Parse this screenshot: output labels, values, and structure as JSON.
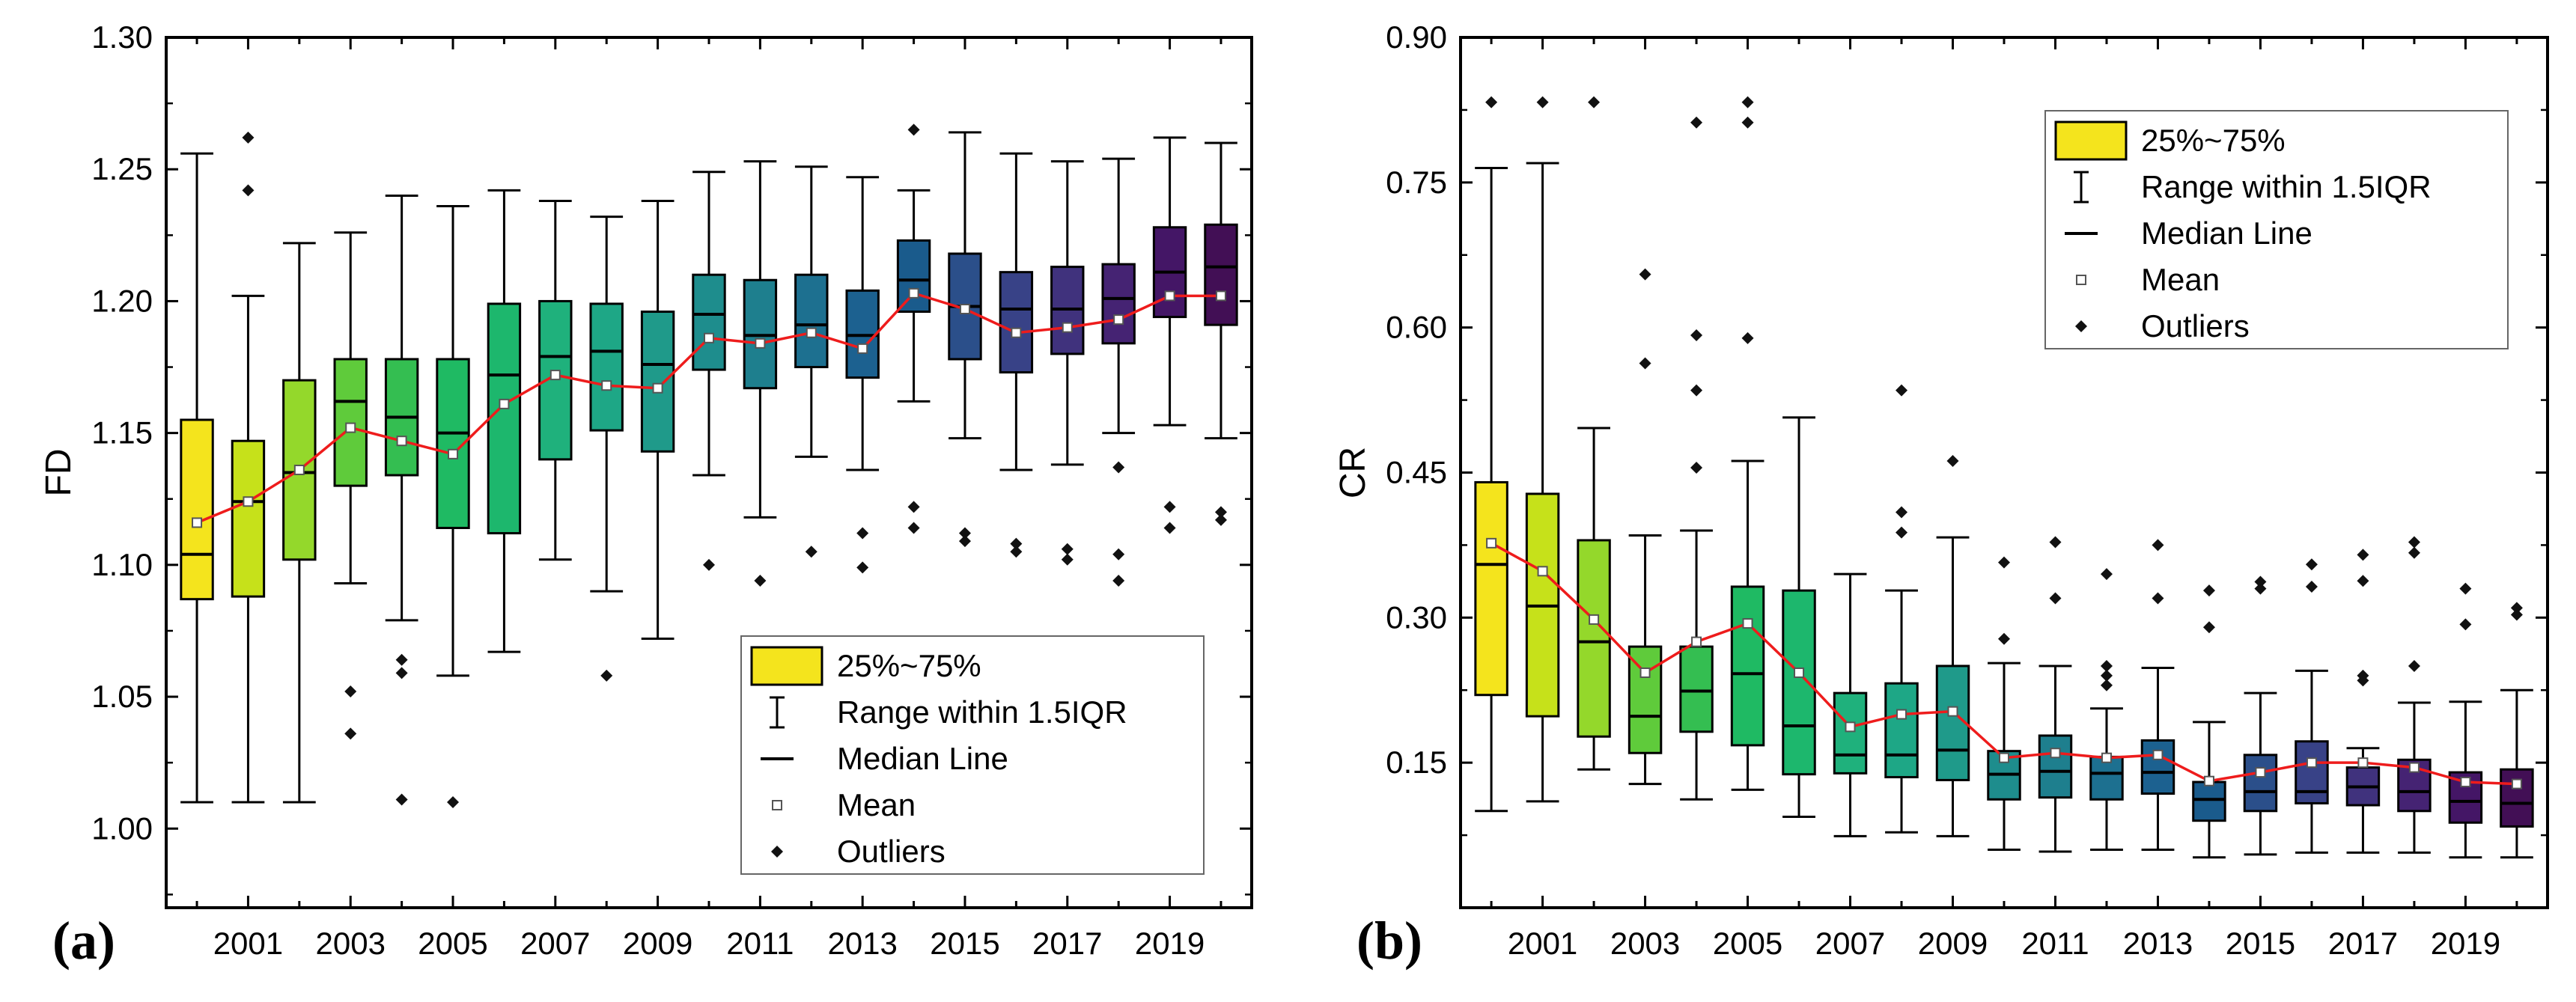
{
  "chart_data": [
    {
      "type": "box",
      "panel_label": "(a)",
      "ylabel": "FD",
      "xlabel": "",
      "ylim": [
        0.97,
        1.3
      ],
      "yticks": [
        "1.00",
        "1.05",
        "1.10",
        "1.15",
        "1.20",
        "1.25",
        "1.30"
      ],
      "xtick_labels": [
        "2001",
        "2003",
        "2005",
        "2007",
        "2009",
        "2011",
        "2013",
        "2015",
        "2017",
        "2019"
      ],
      "years": [
        2000,
        2001,
        2002,
        2003,
        2004,
        2005,
        2006,
        2007,
        2008,
        2009,
        2010,
        2011,
        2012,
        2013,
        2014,
        2015,
        2016,
        2017,
        2018,
        2019,
        2020
      ],
      "box_colors": [
        "#f4e41d",
        "#c6e11a",
        "#94d82b",
        "#5fcb3b",
        "#34be51",
        "#1fba63",
        "#1db76d",
        "#1fb17c",
        "#1ea786",
        "#1f9a8a",
        "#1e8d8d",
        "#1e7f8e",
        "#1d7090",
        "#1c6190",
        "#1a5b8c",
        "#2b4f8a",
        "#384287",
        "#40327d",
        "#452373",
        "#441666",
        "#420f55"
      ],
      "stats": [
        {
          "whislo": 1.01,
          "q1": 1.087,
          "med": 1.104,
          "q3": 1.155,
          "whishi": 1.256,
          "mean": 1.116,
          "fliers": []
        },
        {
          "whislo": 1.01,
          "q1": 1.088,
          "med": 1.124,
          "q3": 1.147,
          "whishi": 1.202,
          "mean": 1.124,
          "fliers": [
            1.242,
            1.262
          ]
        },
        {
          "whislo": 1.01,
          "q1": 1.102,
          "med": 1.135,
          "q3": 1.17,
          "whishi": 1.222,
          "mean": 1.136,
          "fliers": []
        },
        {
          "whislo": 1.093,
          "q1": 1.13,
          "med": 1.162,
          "q3": 1.178,
          "whishi": 1.226,
          "mean": 1.152,
          "fliers": [
            1.052,
            1.036
          ]
        },
        {
          "whislo": 1.079,
          "q1": 1.134,
          "med": 1.156,
          "q3": 1.178,
          "whishi": 1.24,
          "mean": 1.147,
          "fliers": [
            1.064,
            1.059,
            1.011
          ]
        },
        {
          "whislo": 1.058,
          "q1": 1.114,
          "med": 1.15,
          "q3": 1.178,
          "whishi": 1.236,
          "mean": 1.142,
          "fliers": [
            1.01
          ]
        },
        {
          "whislo": 1.067,
          "q1": 1.112,
          "med": 1.172,
          "q3": 1.199,
          "whishi": 1.242,
          "mean": 1.161,
          "fliers": []
        },
        {
          "whislo": 1.102,
          "q1": 1.14,
          "med": 1.179,
          "q3": 1.2,
          "whishi": 1.238,
          "mean": 1.172,
          "fliers": []
        },
        {
          "whislo": 1.09,
          "q1": 1.151,
          "med": 1.181,
          "q3": 1.199,
          "whishi": 1.232,
          "mean": 1.168,
          "fliers": [
            1.058
          ]
        },
        {
          "whislo": 1.072,
          "q1": 1.143,
          "med": 1.176,
          "q3": 1.196,
          "whishi": 1.238,
          "mean": 1.167,
          "fliers": []
        },
        {
          "whislo": 1.134,
          "q1": 1.174,
          "med": 1.195,
          "q3": 1.21,
          "whishi": 1.249,
          "mean": 1.186,
          "fliers": [
            1.1
          ]
        },
        {
          "whislo": 1.118,
          "q1": 1.167,
          "med": 1.187,
          "q3": 1.208,
          "whishi": 1.253,
          "mean": 1.184,
          "fliers": [
            1.094
          ]
        },
        {
          "whislo": 1.141,
          "q1": 1.175,
          "med": 1.191,
          "q3": 1.21,
          "whishi": 1.251,
          "mean": 1.188,
          "fliers": [
            1.105
          ]
        },
        {
          "whislo": 1.136,
          "q1": 1.171,
          "med": 1.187,
          "q3": 1.204,
          "whishi": 1.247,
          "mean": 1.182,
          "fliers": [
            1.112,
            1.099
          ]
        },
        {
          "whislo": 1.162,
          "q1": 1.196,
          "med": 1.208,
          "q3": 1.223,
          "whishi": 1.242,
          "mean": 1.203,
          "fliers": [
            1.265,
            1.122,
            1.114
          ]
        },
        {
          "whislo": 1.148,
          "q1": 1.178,
          "med": 1.198,
          "q3": 1.218,
          "whishi": 1.264,
          "mean": 1.197,
          "fliers": [
            1.112,
            1.109
          ]
        },
        {
          "whislo": 1.136,
          "q1": 1.173,
          "med": 1.197,
          "q3": 1.211,
          "whishi": 1.256,
          "mean": 1.188,
          "fliers": [
            1.108,
            1.105
          ]
        },
        {
          "whislo": 1.138,
          "q1": 1.18,
          "med": 1.197,
          "q3": 1.213,
          "whishi": 1.253,
          "mean": 1.19,
          "fliers": [
            1.106,
            1.102
          ]
        },
        {
          "whislo": 1.15,
          "q1": 1.184,
          "med": 1.201,
          "q3": 1.214,
          "whishi": 1.254,
          "mean": 1.193,
          "fliers": [
            1.137,
            1.104,
            1.094
          ]
        },
        {
          "whislo": 1.153,
          "q1": 1.194,
          "med": 1.211,
          "q3": 1.228,
          "whishi": 1.262,
          "mean": 1.202,
          "fliers": [
            1.122,
            1.114
          ]
        },
        {
          "whislo": 1.148,
          "q1": 1.191,
          "med": 1.213,
          "q3": 1.229,
          "whishi": 1.26,
          "mean": 1.202,
          "fliers": [
            1.12,
            1.117
          ]
        }
      ],
      "legend": {
        "placement": "bottom-right",
        "entries": [
          "25%~75%",
          "Range within 1.5IQR",
          "Median Line",
          "Mean",
          "Outliers"
        ]
      }
    },
    {
      "type": "box",
      "panel_label": "(b)",
      "ylabel": "CR",
      "xlabel": "",
      "ylim": [
        0.0,
        0.9
      ],
      "yticks": [
        "0.15",
        "0.30",
        "0.45",
        "0.60",
        "0.75",
        "0.90"
      ],
      "xtick_labels": [
        "2001",
        "2003",
        "2005",
        "2007",
        "2009",
        "2011",
        "2013",
        "2015",
        "2017",
        "2019"
      ],
      "years": [
        2000,
        2001,
        2002,
        2003,
        2004,
        2005,
        2006,
        2007,
        2008,
        2009,
        2010,
        2011,
        2012,
        2013,
        2014,
        2015,
        2016,
        2017,
        2018,
        2019,
        2020
      ],
      "box_colors": [
        "#f4e41d",
        "#c6e11a",
        "#94d82b",
        "#5fcb3b",
        "#34be51",
        "#1fba63",
        "#1db76d",
        "#1fb17c",
        "#1ea786",
        "#1f9a8a",
        "#1e8d8d",
        "#1e7f8e",
        "#1d7090",
        "#1c6190",
        "#1a5b8c",
        "#2b4f8a",
        "#384287",
        "#40327d",
        "#452373",
        "#441666",
        "#420f55"
      ],
      "stats": [
        {
          "whislo": 0.1,
          "q1": 0.22,
          "med": 0.355,
          "q3": 0.44,
          "whishi": 0.765,
          "mean": 0.377,
          "fliers": [
            0.833
          ]
        },
        {
          "whislo": 0.11,
          "q1": 0.198,
          "med": 0.312,
          "q3": 0.428,
          "whishi": 0.77,
          "mean": 0.348,
          "fliers": [
            0.833
          ]
        },
        {
          "whislo": 0.143,
          "q1": 0.177,
          "med": 0.275,
          "q3": 0.38,
          "whishi": 0.496,
          "mean": 0.298,
          "fliers": [
            0.833
          ]
        },
        {
          "whislo": 0.128,
          "q1": 0.16,
          "med": 0.198,
          "q3": 0.27,
          "whishi": 0.385,
          "mean": 0.243,
          "fliers": [
            0.655,
            0.563
          ]
        },
        {
          "whislo": 0.112,
          "q1": 0.182,
          "med": 0.224,
          "q3": 0.27,
          "whishi": 0.39,
          "mean": 0.275,
          "fliers": [
            0.812,
            0.592,
            0.535,
            0.455
          ]
        },
        {
          "whislo": 0.122,
          "q1": 0.168,
          "med": 0.242,
          "q3": 0.332,
          "whishi": 0.462,
          "mean": 0.294,
          "fliers": [
            0.833,
            0.812,
            0.589
          ]
        },
        {
          "whislo": 0.094,
          "q1": 0.138,
          "med": 0.188,
          "q3": 0.328,
          "whishi": 0.507,
          "mean": 0.243,
          "fliers": []
        },
        {
          "whislo": 0.074,
          "q1": 0.139,
          "med": 0.158,
          "q3": 0.222,
          "whishi": 0.345,
          "mean": 0.187,
          "fliers": []
        },
        {
          "whislo": 0.078,
          "q1": 0.135,
          "med": 0.158,
          "q3": 0.232,
          "whishi": 0.328,
          "mean": 0.2,
          "fliers": [
            0.535,
            0.409,
            0.388
          ]
        },
        {
          "whislo": 0.074,
          "q1": 0.132,
          "med": 0.163,
          "q3": 0.25,
          "whishi": 0.383,
          "mean": 0.203,
          "fliers": [
            0.462
          ]
        },
        {
          "whislo": 0.06,
          "q1": 0.112,
          "med": 0.138,
          "q3": 0.162,
          "whishi": 0.253,
          "mean": 0.155,
          "fliers": [
            0.357,
            0.278
          ]
        },
        {
          "whislo": 0.058,
          "q1": 0.114,
          "med": 0.141,
          "q3": 0.178,
          "whishi": 0.25,
          "mean": 0.16,
          "fliers": [
            0.378,
            0.32
          ]
        },
        {
          "whislo": 0.06,
          "q1": 0.112,
          "med": 0.139,
          "q3": 0.156,
          "whishi": 0.206,
          "mean": 0.155,
          "fliers": [
            0.345,
            0.25,
            0.24,
            0.23
          ]
        },
        {
          "whislo": 0.06,
          "q1": 0.118,
          "med": 0.14,
          "q3": 0.173,
          "whishi": 0.248,
          "mean": 0.158,
          "fliers": [
            0.375,
            0.32
          ]
        },
        {
          "whislo": 0.052,
          "q1": 0.09,
          "med": 0.112,
          "q3": 0.13,
          "whishi": 0.192,
          "mean": 0.131,
          "fliers": [
            0.328,
            0.29
          ]
        },
        {
          "whislo": 0.055,
          "q1": 0.1,
          "med": 0.12,
          "q3": 0.158,
          "whishi": 0.222,
          "mean": 0.14,
          "fliers": [
            0.337,
            0.33
          ]
        },
        {
          "whislo": 0.057,
          "q1": 0.108,
          "med": 0.12,
          "q3": 0.172,
          "whishi": 0.245,
          "mean": 0.15,
          "fliers": [
            0.355,
            0.332
          ]
        },
        {
          "whislo": 0.057,
          "q1": 0.106,
          "med": 0.125,
          "q3": 0.145,
          "whishi": 0.165,
          "mean": 0.15,
          "fliers": [
            0.365,
            0.338,
            0.24,
            0.235
          ]
        },
        {
          "whislo": 0.057,
          "q1": 0.1,
          "med": 0.12,
          "q3": 0.153,
          "whishi": 0.212,
          "mean": 0.145,
          "fliers": [
            0.378,
            0.367,
            0.25
          ]
        },
        {
          "whislo": 0.052,
          "q1": 0.088,
          "med": 0.11,
          "q3": 0.14,
          "whishi": 0.213,
          "mean": 0.13,
          "fliers": [
            0.33,
            0.293
          ]
        },
        {
          "whislo": 0.052,
          "q1": 0.084,
          "med": 0.108,
          "q3": 0.143,
          "whishi": 0.225,
          "mean": 0.128,
          "fliers": [
            0.31,
            0.303
          ]
        }
      ],
      "legend": {
        "placement": "top-right",
        "entries": [
          "25%~75%",
          "Range within 1.5IQR",
          "Median Line",
          "Mean",
          "Outliers"
        ]
      }
    }
  ]
}
